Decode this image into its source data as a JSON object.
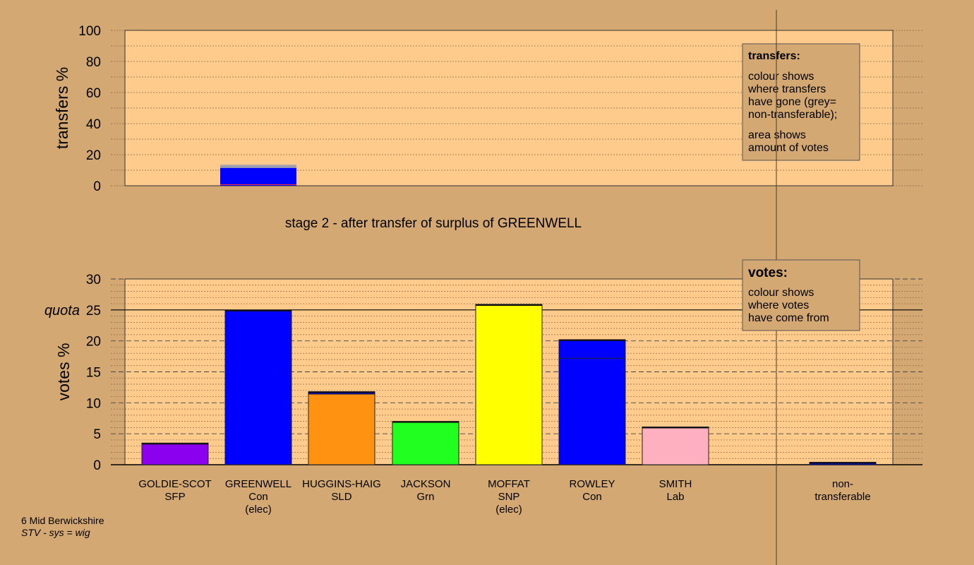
{
  "chart_data": [
    {
      "type": "bar",
      "title": "stage 2 - after transfer of surplus of GREENWELL",
      "ylabel": "transfers %",
      "ylim": [
        0,
        100
      ],
      "yticks": [
        0,
        20,
        40,
        60,
        80,
        100
      ],
      "categories": [
        "GOLDIE-SCOT",
        "GREENWELL",
        "HUGGINS-HAIG",
        "JACKSON",
        "MOFFAT",
        "ROWLEY",
        "SMITH",
        "non-transferable"
      ],
      "series": [
        {
          "color": "#0000ff",
          "values": [
            0,
            11.5,
            0,
            0,
            0,
            0,
            0,
            0
          ]
        },
        {
          "color": "#a0a0b0",
          "values": [
            0,
            2,
            0,
            0,
            0,
            0,
            0,
            0
          ]
        }
      ],
      "legend": {
        "title": "transfers:",
        "lines1": [
          "colour shows",
          "where transfers",
          "have gone (grey=",
          "non-transferable);"
        ],
        "lines2": [
          "area shows",
          "amount of votes"
        ]
      }
    },
    {
      "type": "bar",
      "ylabel": "votes %",
      "ylim": [
        0,
        30
      ],
      "yticks": [
        0,
        5,
        10,
        15,
        20,
        25,
        30
      ],
      "quota": {
        "label": "quota",
        "value": 25
      },
      "categories": [
        {
          "name": "GOLDIE-SCOT",
          "party": "SFP",
          "note": ""
        },
        {
          "name": "GREENWELL",
          "party": "Con",
          "note": "(elec)"
        },
        {
          "name": "HUGGINS-HAIG",
          "party": "SLD",
          "note": ""
        },
        {
          "name": "JACKSON",
          "party": "Grn",
          "note": ""
        },
        {
          "name": "MOFFAT",
          "party": "SNP",
          "note": "(elec)"
        },
        {
          "name": "ROWLEY",
          "party": "Con",
          "note": ""
        },
        {
          "name": "SMITH",
          "party": "Lab",
          "note": ""
        },
        {
          "name": "non-",
          "party": "transferable",
          "note": ""
        }
      ],
      "bars": [
        {
          "total": 3.5,
          "segments": [
            {
              "value": 3.5,
              "color": "#8b00ee"
            }
          ]
        },
        {
          "total": 25.0,
          "segments": [
            {
              "value": 25.0,
              "color": "#0000ff"
            }
          ]
        },
        {
          "total": 11.8,
          "segments": [
            {
              "value": 11.4,
              "color": "#ff9210"
            },
            {
              "value": 0.4,
              "color": "#0000ff"
            }
          ]
        },
        {
          "total": 7.0,
          "segments": [
            {
              "value": 7.0,
              "color": "#20ff20"
            }
          ]
        },
        {
          "total": 25.9,
          "segments": [
            {
              "value": 25.9,
              "color": "#ffff00"
            }
          ]
        },
        {
          "total": 20.2,
          "segments": [
            {
              "value": 17.2,
              "color": "#0000ff"
            },
            {
              "value": 3.0,
              "color": "#0000ff"
            }
          ]
        },
        {
          "total": 6.1,
          "segments": [
            {
              "value": 6.1,
              "color": "#ffb0c0"
            }
          ]
        },
        {
          "total": 0.4,
          "segments": [
            {
              "value": 0.4,
              "color": "#0000ff"
            }
          ]
        }
      ],
      "legend": {
        "title": "votes:",
        "lines": [
          "colour shows",
          "where votes",
          "have come from"
        ]
      }
    }
  ],
  "footer": {
    "constituency": "6 Mid Berwickshire",
    "system": "STV - sys = wig"
  },
  "colors": {
    "background": "#d4a872",
    "plot_area": "#fecb8c",
    "legend_box": "#d4a872"
  }
}
